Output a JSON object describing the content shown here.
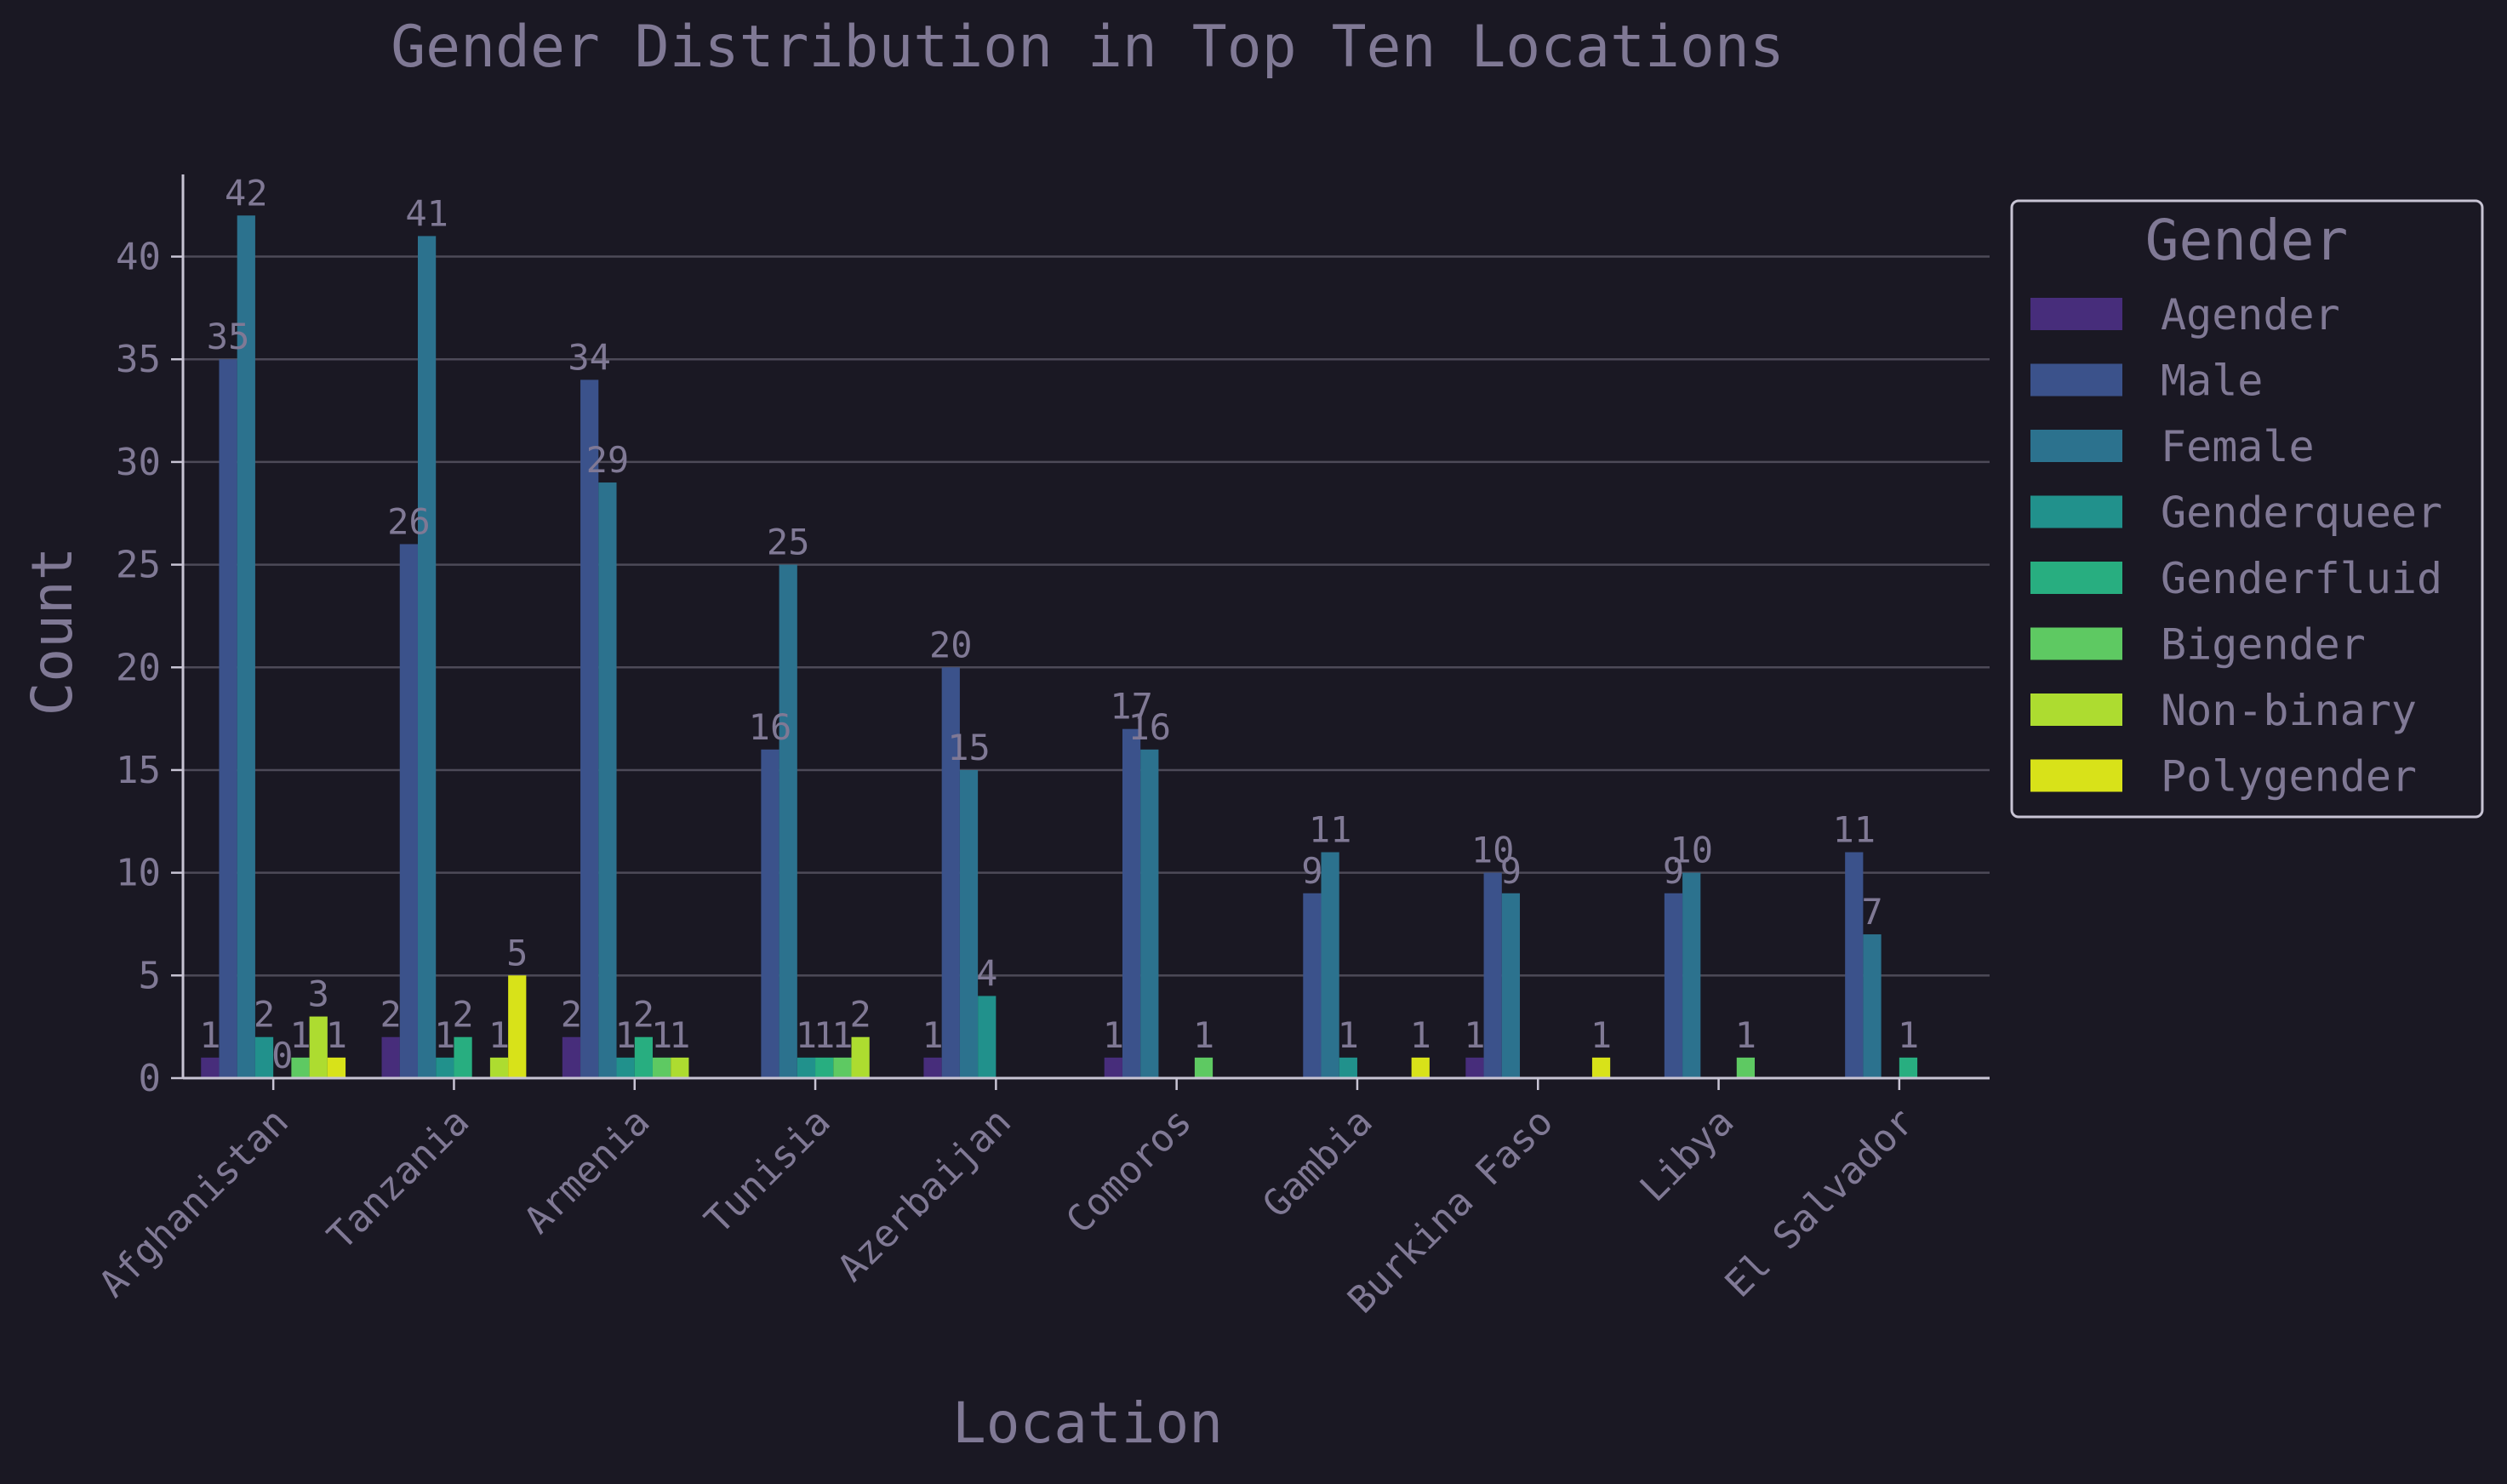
{
  "chart_data": {
    "type": "bar",
    "title": "Gender Distribution in Top Ten Locations",
    "xlabel": "Location",
    "ylabel": "Count",
    "ylim": [
      0,
      44
    ],
    "yticks": [
      0,
      5,
      10,
      15,
      20,
      25,
      30,
      35,
      40
    ],
    "grid": true,
    "legend": {
      "title": "Gender",
      "placement": "right"
    },
    "categories": [
      "Afghanistan",
      "Tanzania",
      "Armenia",
      "Tunisia",
      "Azerbaijan",
      "Comoros",
      "Gambia",
      "Burkina Faso",
      "Libya",
      "El Salvador"
    ],
    "series": [
      {
        "name": "Agender",
        "color": "#472d7b",
        "values": [
          1,
          2,
          2,
          null,
          1,
          1,
          null,
          1,
          null,
          null
        ]
      },
      {
        "name": "Male",
        "color": "#3b528b",
        "values": [
          35,
          26,
          34,
          16,
          20,
          17,
          9,
          10,
          9,
          11
        ]
      },
      {
        "name": "Female",
        "color": "#2c728e",
        "values": [
          42,
          41,
          29,
          25,
          15,
          16,
          11,
          9,
          10,
          7
        ]
      },
      {
        "name": "Genderqueer",
        "color": "#21918c",
        "values": [
          2,
          1,
          1,
          1,
          4,
          null,
          1,
          null,
          null,
          null
        ]
      },
      {
        "name": "Genderfluid",
        "color": "#28ae80",
        "values": [
          0,
          2,
          2,
          1,
          null,
          null,
          null,
          null,
          null,
          1
        ]
      },
      {
        "name": "Bigender",
        "color": "#5ec962",
        "values": [
          1,
          null,
          1,
          1,
          null,
          1,
          null,
          null,
          1,
          null
        ]
      },
      {
        "name": "Non-binary",
        "color": "#addc30",
        "values": [
          3,
          1,
          1,
          2,
          null,
          null,
          null,
          null,
          null,
          null
        ]
      },
      {
        "name": "Polygender",
        "color": "#d8e219",
        "values": [
          1,
          5,
          null,
          null,
          null,
          null,
          1,
          1,
          null,
          null
        ]
      }
    ]
  },
  "colors": {
    "background": "#1a1823",
    "text": "#807995",
    "grid": "#4d4a58",
    "axis": "#c8c4d4"
  }
}
